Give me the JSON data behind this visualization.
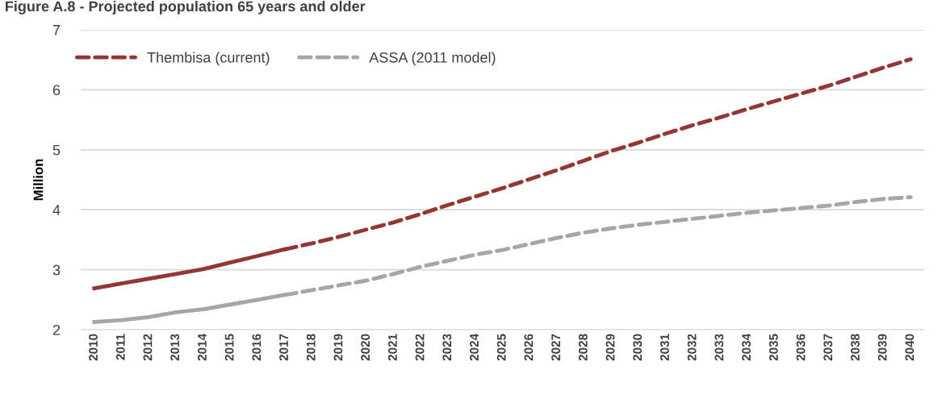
{
  "chart_data": {
    "type": "line",
    "title": "Figure A.8 - Projected population 65 years and older",
    "ylabel": "Million",
    "categories": [
      "2010",
      "2011",
      "2012",
      "2013",
      "2014",
      "2015",
      "2016",
      "2017",
      "2018",
      "2019",
      "2020",
      "2021",
      "2022",
      "2023",
      "2024",
      "2025",
      "2026",
      "2027",
      "2028",
      "2029",
      "2030",
      "2031",
      "2032",
      "2033",
      "2034",
      "2035",
      "2036",
      "2037",
      "2038",
      "2039",
      "2040"
    ],
    "series": [
      {
        "color": "#943634",
        "line_style": "solid",
        "values": [
          2.69,
          2.77,
          2.85,
          2.93,
          3.01,
          3.12,
          3.23,
          3.34,
          null,
          null,
          null,
          null,
          null,
          null,
          null,
          null,
          null,
          null,
          null,
          null,
          null,
          null,
          null,
          null,
          null,
          null,
          null,
          null,
          null,
          null,
          null
        ]
      },
      {
        "name": "Thembisa (current)",
        "color": "#943634",
        "line_style": "dashed",
        "values": [
          null,
          null,
          null,
          null,
          null,
          null,
          null,
          3.34,
          3.44,
          3.55,
          3.67,
          3.79,
          3.93,
          4.08,
          4.22,
          4.36,
          4.51,
          4.66,
          4.82,
          4.98,
          5.12,
          5.27,
          5.41,
          5.54,
          5.68,
          5.81,
          5.94,
          6.07,
          6.22,
          6.37,
          6.51
        ]
      },
      {
        "color": "#a6a6a6",
        "line_style": "solid",
        "values": [
          2.13,
          2.16,
          2.21,
          2.29,
          2.34,
          2.42,
          2.5,
          2.58,
          null,
          null,
          null,
          null,
          null,
          null,
          null,
          null,
          null,
          null,
          null,
          null,
          null,
          null,
          null,
          null,
          null,
          null,
          null,
          null,
          null,
          null,
          null
        ]
      },
      {
        "name": "ASSA (2011 model)",
        "color": "#a6a6a6",
        "line_style": "dashed",
        "values": [
          null,
          null,
          null,
          null,
          null,
          null,
          null,
          2.58,
          2.66,
          2.74,
          2.82,
          2.93,
          3.05,
          3.15,
          3.25,
          3.33,
          3.43,
          3.53,
          3.62,
          3.69,
          3.75,
          3.8,
          3.85,
          3.9,
          3.95,
          3.99,
          4.03,
          4.07,
          4.13,
          4.18,
          4.21
        ]
      }
    ],
    "ylim": [
      2,
      7
    ],
    "yticks": [
      2,
      3,
      4,
      5,
      6,
      7
    ],
    "grid": "y",
    "legend": "top left"
  }
}
